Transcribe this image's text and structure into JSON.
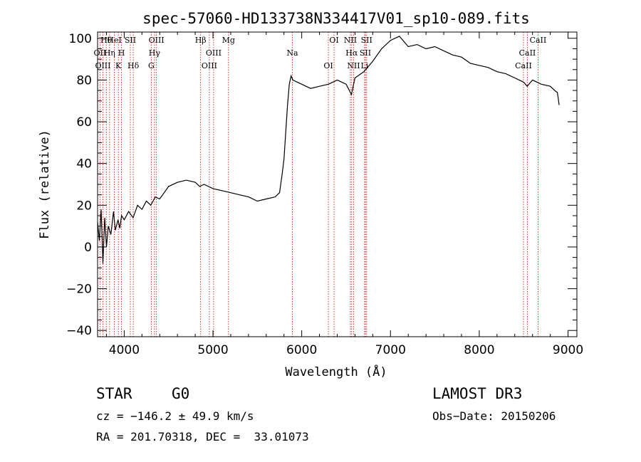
{
  "chart_data": {
    "type": "line",
    "title": "spec-57060-HD133738N334417V01_sp10-089.fits",
    "xlabel": "Wavelength (Å)",
    "ylabel": "Flux (relative)",
    "xlim": [
      3700,
      9100
    ],
    "ylim": [
      -43,
      103
    ],
    "x_ticks": [
      4000,
      5000,
      6000,
      7000,
      8000,
      9000
    ],
    "x_tick_labels": [
      "4000",
      "5000",
      "6000",
      "7000",
      "8000",
      "9000"
    ],
    "y_ticks": [
      -40,
      -20,
      0,
      20,
      40,
      60,
      80,
      100
    ],
    "y_tick_labels": [
      "−40",
      "−20",
      "0",
      "20",
      "40",
      "60",
      "80",
      "100"
    ],
    "series": [
      {
        "name": "spectrum",
        "x": [
          3700,
          3720,
          3740,
          3760,
          3780,
          3800,
          3820,
          3850,
          3880,
          3900,
          3930,
          3950,
          3970,
          4000,
          4050,
          4100,
          4150,
          4200,
          4250,
          4300,
          4350,
          4400,
          4450,
          4500,
          4600,
          4700,
          4800,
          4850,
          4900,
          5000,
          5100,
          5200,
          5300,
          5400,
          5500,
          5600,
          5700,
          5750,
          5780,
          5800,
          5820,
          5840,
          5860,
          5880,
          5900,
          5950,
          6000,
          6100,
          6200,
          6300,
          6400,
          6500,
          6560,
          6600,
          6700,
          6800,
          6900,
          7000,
          7100,
          7200,
          7300,
          7400,
          7500,
          7600,
          7700,
          7800,
          7900,
          8000,
          8100,
          8200,
          8300,
          8400,
          8500,
          8540,
          8600,
          8700,
          8800,
          8850,
          8880,
          8900
        ],
        "y": [
          12,
          3,
          18,
          -8,
          14,
          0,
          10,
          6,
          17,
          8,
          13,
          9,
          15,
          13,
          17,
          14,
          20,
          18,
          22,
          20,
          24,
          23,
          26,
          29,
          31,
          32,
          31,
          29,
          30,
          28,
          27,
          26,
          25,
          24,
          22,
          23,
          24,
          26,
          35,
          42,
          55,
          68,
          78,
          82,
          80,
          79,
          78,
          76,
          77,
          78,
          80,
          78,
          73,
          81,
          84,
          89,
          95,
          99,
          101,
          96,
          97,
          95,
          96,
          94,
          92,
          91,
          88,
          87,
          86,
          84,
          83,
          81,
          79,
          77,
          80,
          78,
          77,
          75,
          74,
          68
        ]
      }
    ],
    "lines": [
      {
        "label": "Hθ",
        "x": 3798
      },
      {
        "label": "OII",
        "x": 3727
      },
      {
        "label": "OIII",
        "x": 3760
      },
      {
        "label": "HeI",
        "x": 3889
      },
      {
        "label": "Hη",
        "x": 3835
      },
      {
        "label": "K",
        "x": 3934
      },
      {
        "label": "SII",
        "x": 4069
      },
      {
        "label": "H",
        "x": 3969
      },
      {
        "label": "Hδ",
        "x": 4102
      },
      {
        "label": "OIII",
        "x": 4363
      },
      {
        "label": "Hγ",
        "x": 4341
      },
      {
        "label": "G",
        "x": 4305
      },
      {
        "label": "Hβ",
        "x": 4861
      },
      {
        "label": "OIII",
        "x": 5007
      },
      {
        "label": "OIII",
        "x": 4959
      },
      {
        "label": "Mg",
        "x": 5175
      },
      {
        "label": "Na",
        "x": 5894
      },
      {
        "label": "OI",
        "x": 6300
      },
      {
        "label": "OI",
        "x": 6364
      },
      {
        "label": "Hα",
        "x": 6563
      },
      {
        "label": "NII",
        "x": 6584
      },
      {
        "label": "NII",
        "x": 6548
      },
      {
        "label": "SII",
        "x": 6717
      },
      {
        "label": "Li",
        "x": 6708
      },
      {
        "label": "SII",
        "x": 6731
      },
      {
        "label": "CaII",
        "x": 8542
      },
      {
        "label": "CaII",
        "x": 8498
      },
      {
        "label": "CaII",
        "x": 8662
      }
    ]
  },
  "info": {
    "object_class": "STAR",
    "subclass": "G0",
    "survey": "LAMOST DR3",
    "cz": "cz = −146.2 ± 49.9 km/s",
    "obs_date": "Obs−Date: 20150206",
    "coords": "RA = 201.70318, DEC =  33.01073"
  },
  "colors": {
    "spectrum": "#000000",
    "line_marker": "#cc0000",
    "background": "#ffffff"
  }
}
